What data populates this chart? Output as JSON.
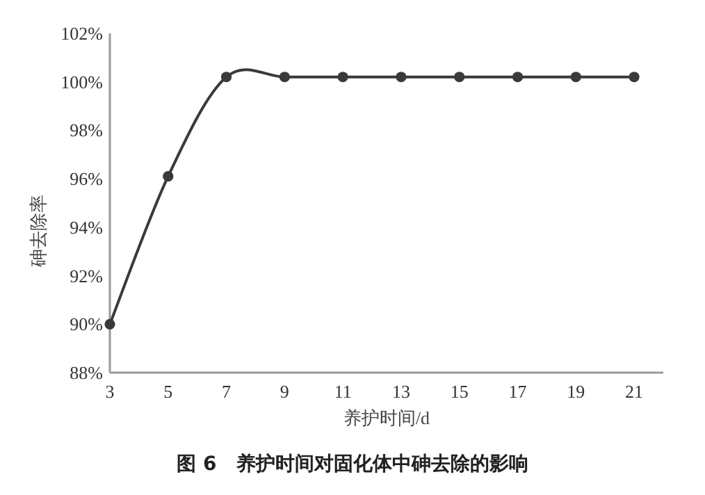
{
  "chart_data": {
    "type": "line",
    "title": "图 6　养护时间对固化体中砷去除的影响",
    "xlabel": "养护时间/d",
    "ylabel": "砷去除率",
    "categories": [
      "3",
      "5",
      "7",
      "9",
      "11",
      "13",
      "15",
      "17",
      "19",
      "21"
    ],
    "series": [
      {
        "color": "#3a3a3a",
        "values": [
          90,
          96.1,
          100.2,
          100.2,
          100.2,
          100.2,
          100.2,
          100.2,
          100.2,
          100.2
        ]
      }
    ],
    "ylim": [
      88,
      102
    ],
    "yticks": [
      {
        "value": 88,
        "label": "88%"
      },
      {
        "value": 90,
        "label": "90%"
      },
      {
        "value": 92,
        "label": "92%"
      },
      {
        "value": 94,
        "label": "94%"
      },
      {
        "value": 96,
        "label": "96%"
      },
      {
        "value": 98,
        "label": "98%"
      },
      {
        "value": 100,
        "label": "100%"
      },
      {
        "value": 102,
        "label": "102%"
      }
    ],
    "grid": false,
    "marker": "circle",
    "line_style": "solid"
  }
}
